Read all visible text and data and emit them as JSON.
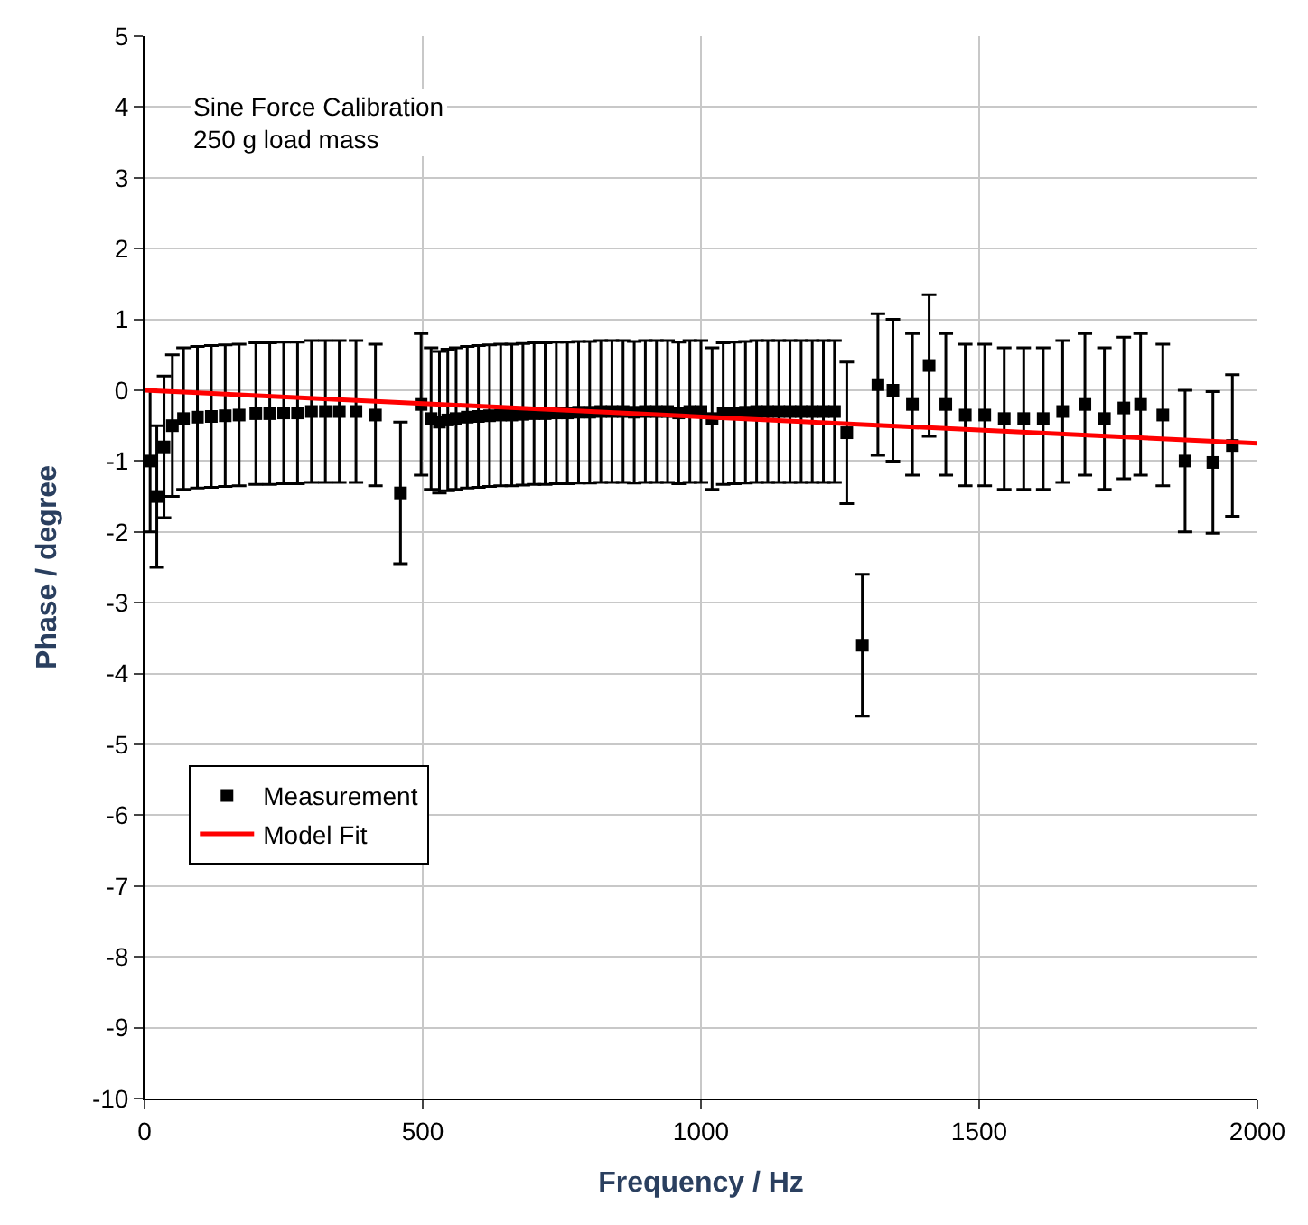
{
  "chart_data": {
    "type": "scatter",
    "xlabel": "Frequency / Hz",
    "ylabel": "Phase / degree",
    "annotations": [
      "Sine Force Calibration",
      "250 g load mass"
    ],
    "xlim": [
      0,
      2000
    ],
    "xticks": [
      0,
      500,
      1000,
      1500,
      2000
    ],
    "ylim": [
      -10,
      5
    ],
    "yticks": [
      -10,
      -9,
      -8,
      -7,
      -6,
      -5,
      -4,
      -3,
      -2,
      -1,
      0,
      1,
      2,
      3,
      4,
      5
    ],
    "grid": true,
    "legend": "bottom left",
    "marker": "square",
    "series": [
      {
        "name": "Measurement",
        "color": "#000000",
        "x": [
          10,
          22,
          35,
          50,
          70,
          95,
          120,
          145,
          170,
          200,
          225,
          250,
          275,
          300,
          325,
          350,
          380,
          415,
          460,
          497,
          515,
          530,
          545,
          560,
          580,
          600,
          620,
          640,
          660,
          680,
          700,
          720,
          740,
          760,
          780,
          800,
          820,
          840,
          860,
          880,
          900,
          920,
          940,
          960,
          980,
          1000,
          1020,
          1040,
          1060,
          1080,
          1100,
          1120,
          1140,
          1160,
          1180,
          1200,
          1220,
          1240,
          1262,
          1290,
          1318,
          1345,
          1380,
          1410,
          1440,
          1475,
          1510,
          1545,
          1580,
          1615,
          1650,
          1690,
          1725,
          1760,
          1790,
          1830,
          1870,
          1920,
          1955
        ],
        "values": [
          -1.0,
          -1.5,
          -0.8,
          -0.5,
          -0.4,
          -0.38,
          -0.37,
          -0.36,
          -0.35,
          -0.33,
          -0.33,
          -0.32,
          -0.32,
          -0.3,
          -0.3,
          -0.3,
          -0.3,
          -0.35,
          -1.45,
          -0.2,
          -0.4,
          -0.45,
          -0.42,
          -0.4,
          -0.38,
          -0.37,
          -0.36,
          -0.35,
          -0.35,
          -0.34,
          -0.33,
          -0.33,
          -0.32,
          -0.32,
          -0.31,
          -0.31,
          -0.3,
          -0.3,
          -0.3,
          -0.31,
          -0.3,
          -0.3,
          -0.3,
          -0.32,
          -0.3,
          -0.3,
          -0.4,
          -0.33,
          -0.32,
          -0.31,
          -0.3,
          -0.3,
          -0.3,
          -0.3,
          -0.3,
          -0.3,
          -0.3,
          -0.3,
          -0.6,
          -3.6,
          0.08,
          0.0,
          -0.2,
          0.35,
          -0.2,
          -0.35,
          -0.35,
          -0.4,
          -0.4,
          -0.4,
          -0.3,
          -0.2,
          -0.4,
          -0.25,
          -0.2,
          -0.35,
          -1.0,
          -1.02,
          -0.78
        ],
        "errors": [
          1,
          1,
          1,
          1,
          1,
          1,
          1,
          1,
          1,
          1,
          1,
          1,
          1,
          1,
          1,
          1,
          1,
          1,
          1,
          1,
          1,
          1,
          1,
          1,
          1,
          1,
          1,
          1,
          1,
          1,
          1,
          1,
          1,
          1,
          1,
          1,
          1,
          1,
          1,
          1,
          1,
          1,
          1,
          1,
          1,
          1,
          1,
          1,
          1,
          1,
          1,
          1,
          1,
          1,
          1,
          1,
          1,
          1,
          1,
          1,
          1,
          1,
          1,
          1,
          1,
          1,
          1,
          1,
          1,
          1,
          1,
          1,
          1,
          1,
          1,
          1,
          1,
          1,
          1
        ]
      },
      {
        "name": "Model Fit",
        "color": "#ff0000",
        "type": "line",
        "marker": "none",
        "x": [
          0,
          2000
        ],
        "values": [
          0.0,
          -0.75
        ]
      }
    ]
  }
}
